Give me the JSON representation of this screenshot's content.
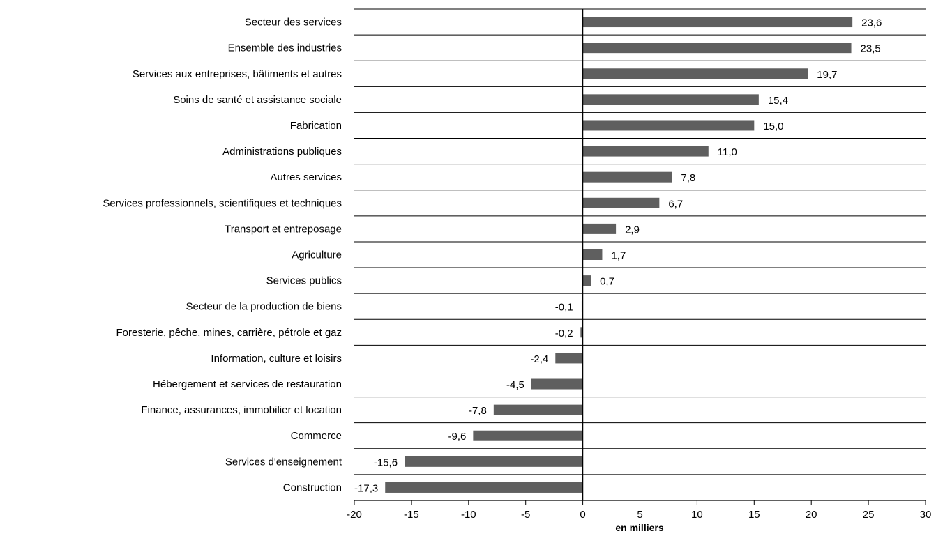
{
  "chart_data": {
    "type": "bar",
    "orientation": "horizontal",
    "categories": [
      "Secteur des services",
      "Ensemble des industries",
      "Services aux entreprises, bâtiments et autres",
      "Soins de santé et assistance sociale",
      "Fabrication",
      "Administrations publiques",
      "Autres services",
      "Services professionnels, scientifiques et techniques",
      "Transport et entreposage",
      "Agriculture",
      "Services publics",
      "Secteur de la production de biens",
      "Foresterie, pêche, mines, carrière, pétrole et gaz",
      "Information, culture et loisirs",
      "Hébergement et services de restauration",
      "Finance, assurances, immobilier et location",
      "Commerce",
      "Services d'enseignement",
      "Construction"
    ],
    "values": [
      23.6,
      23.5,
      19.7,
      15.4,
      15.0,
      11.0,
      7.8,
      6.7,
      2.9,
      1.7,
      0.7,
      -0.1,
      -0.2,
      -2.4,
      -4.5,
      -7.8,
      -9.6,
      -15.6,
      -17.3
    ],
    "value_labels": [
      "23,6",
      "23,5",
      "19,7",
      "15,4",
      "15,0",
      "11,0",
      "7,8",
      "6,7",
      "2,9",
      "1,7",
      "0,7",
      "-0,1",
      "-0,2",
      "-2,4",
      "-4,5",
      "-7,8",
      "-9,6",
      "-15,6",
      "-17,3"
    ],
    "xticks": [
      -20,
      -15,
      -10,
      -5,
      0,
      5,
      10,
      15,
      20,
      25,
      30
    ],
    "xlim": [
      -20,
      30
    ],
    "xlabel": "en milliers",
    "ylabel": "",
    "title": "",
    "grid": "horizontal",
    "bar_color": "#5f5f5f",
    "legend": "none"
  }
}
